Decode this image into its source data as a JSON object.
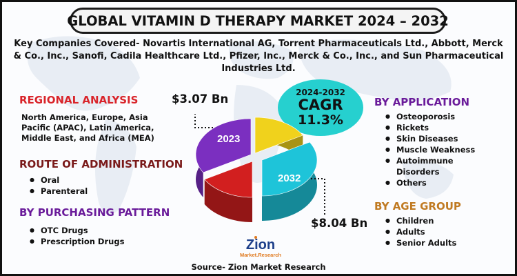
{
  "title": "GLOBAL VITAMIN D THERAPY MARKET 2024 – 2032",
  "companies": "Key Companies Covered- Novartis International AG, Torrent Pharmaceuticals Ltd., Abbott, Merck & Co., Inc., Sanofi, Cadila Healthcare Ltd., Pfizer, Inc., Merck & Co., Inc., and Sun Pharmaceutical Industries Ltd.",
  "regional": {
    "title": "REGIONAL ANALYSIS",
    "body": "North America, Europe, Asia Pacific (APAC), Latin America, Middle East, and Africa (MEA)"
  },
  "route": {
    "title": "ROUTE OF ADMINISTRATION",
    "items": [
      "Oral",
      "Parenteral"
    ]
  },
  "purchasing": {
    "title": "BY PURCHASING PATTERN",
    "items": [
      "OTC Drugs",
      "Prescription Drugs"
    ]
  },
  "application": {
    "title": "BY APPLICATION",
    "items": [
      "Osteoporosis",
      "Rickets",
      "Skin Diseases",
      "Muscle Weakness",
      "Autoimmune Disorders",
      "Others"
    ]
  },
  "age_group": {
    "title": "BY AGE GROUP",
    "items": [
      "Children",
      "Adults",
      "Senior Adults"
    ]
  },
  "cagr": {
    "years": "2024-2032",
    "label": "CAGR",
    "value": "11.3%"
  },
  "logo": {
    "word": "Zion",
    "sub": "Market.Research"
  },
  "source": "Source- Zion Market Research",
  "colors": {
    "red_title": "#d9242a",
    "route_title": "#7a1a1a",
    "purple_title": "#6a1b9a",
    "orange_title": "#c07a22",
    "cagr_oval": "#26d0cf"
  },
  "chart_data": {
    "type": "pie",
    "categories": [
      "2023",
      "2032"
    ],
    "values": [
      3.07,
      8.04
    ],
    "value_labels": [
      "$3.07 Bn",
      "$8.04 Bn"
    ],
    "title": "",
    "slice_colors": [
      "#7b2fc0",
      "#1ec4d9",
      "#f0d21c",
      "#d21f1f"
    ]
  }
}
